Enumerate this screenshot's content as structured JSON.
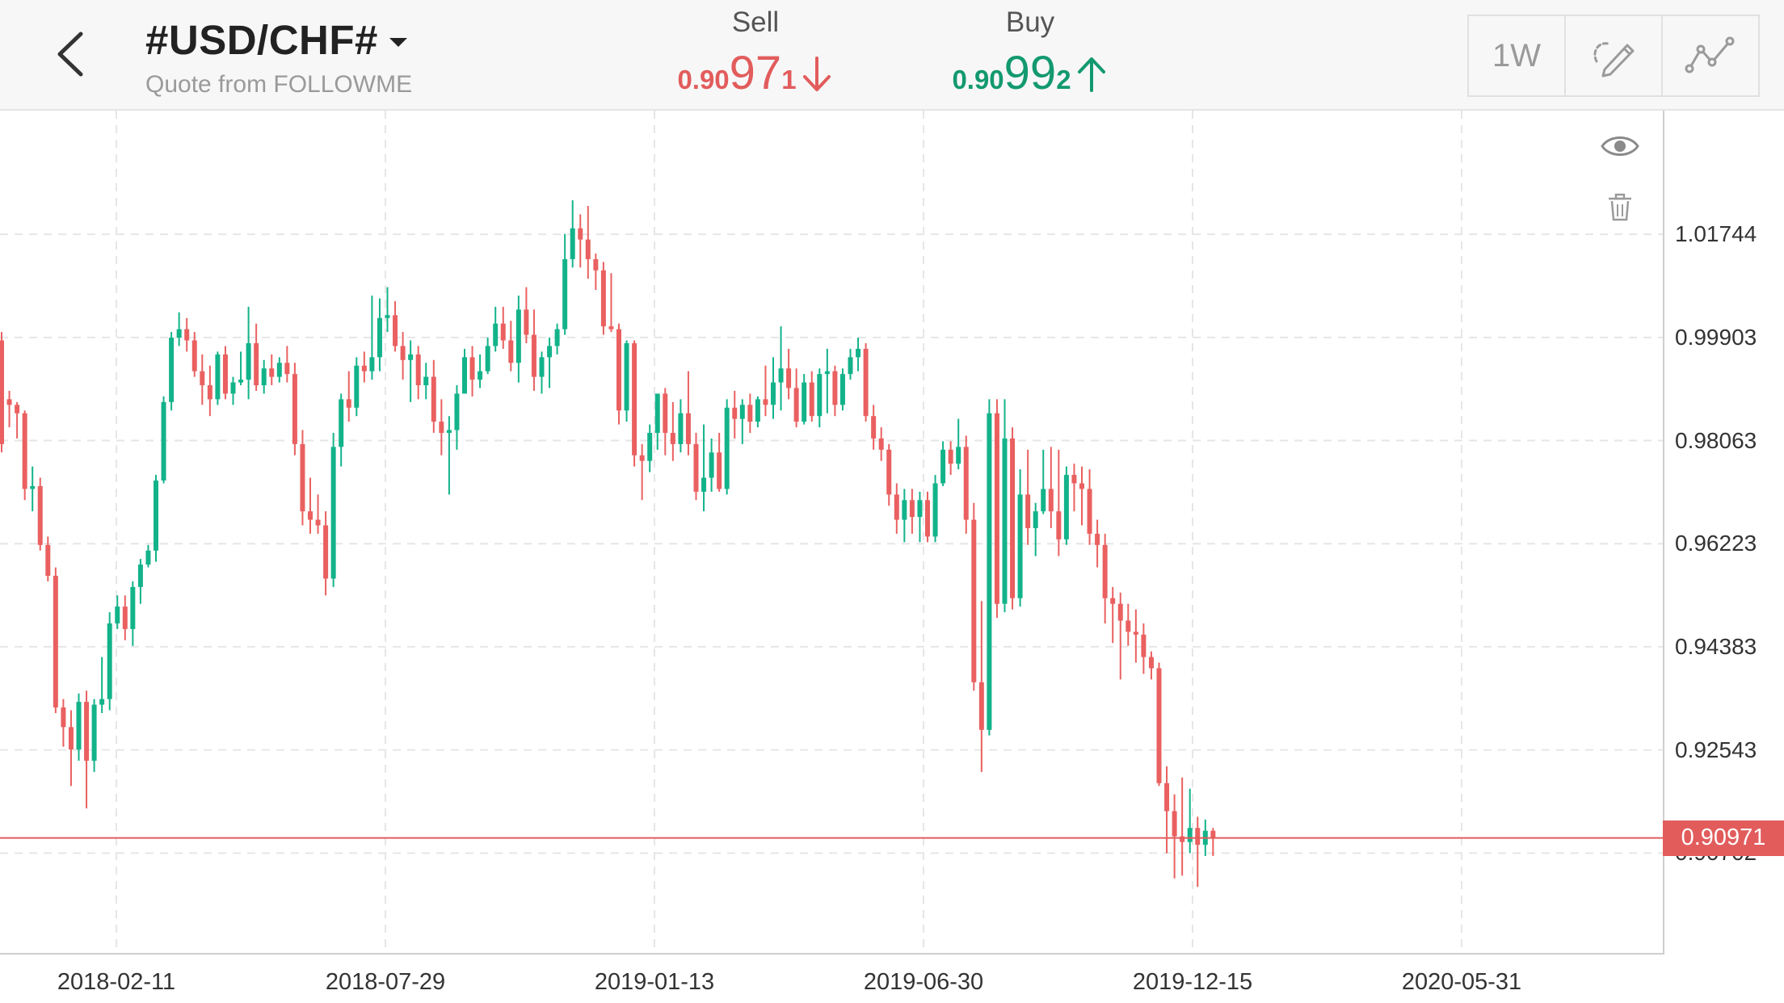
{
  "header": {
    "symbol": "#USD/CHF#",
    "subtitle": "Quote from FOLLOWME",
    "sell": {
      "label": "Sell",
      "price_small": "0.90",
      "price_big": "97",
      "price_sup": "1",
      "direction": "down",
      "color": "#e25c5c"
    },
    "buy": {
      "label": "Buy",
      "price_small": "0.90",
      "price_big": "99",
      "price_sup": "2",
      "direction": "up",
      "color": "#13996f"
    },
    "timeframe": "1W",
    "icons": {
      "back": "back-chevron-icon",
      "dropdown": "caret-down-icon",
      "draw": "pen-draw-icon",
      "indicator": "indicator-line-icon",
      "eye": "eye-icon",
      "trash": "trash-icon"
    }
  },
  "chart_data": {
    "type": "candlestick",
    "ylim": [
      0.8892,
      1.0395
    ],
    "y_ticks": [
      "1.01744",
      "0.99903",
      "0.98063",
      "0.96223",
      "0.94383",
      "0.92543",
      "0.90702"
    ],
    "x_ticks": [
      "2018-02-11",
      "2018-07-29",
      "2019-01-13",
      "2019-06-30",
      "2019-12-15",
      "2020-05-31"
    ],
    "current_price": "0.90971",
    "up_color": "#13b38a",
    "down_color": "#ea6060",
    "candles": [
      [
        0.9985,
        1.0,
        0.9785,
        0.98
      ],
      [
        0.988,
        0.9895,
        0.983,
        0.987
      ],
      [
        0.987,
        0.9875,
        0.981,
        0.9855
      ],
      [
        0.9855,
        0.986,
        0.97,
        0.972
      ],
      [
        0.972,
        0.976,
        0.968,
        0.9725
      ],
      [
        0.9725,
        0.974,
        0.961,
        0.962
      ],
      [
        0.962,
        0.9635,
        0.9555,
        0.9565
      ],
      [
        0.9565,
        0.958,
        0.932,
        0.933
      ],
      [
        0.933,
        0.9345,
        0.926,
        0.9295
      ],
      [
        0.9295,
        0.9325,
        0.919,
        0.9255
      ],
      [
        0.9255,
        0.9355,
        0.9235,
        0.934
      ],
      [
        0.934,
        0.936,
        0.915,
        0.9235
      ],
      [
        0.9235,
        0.9345,
        0.9215,
        0.9335
      ],
      [
        0.9335,
        0.942,
        0.932,
        0.9345
      ],
      [
        0.9345,
        0.95,
        0.9325,
        0.948
      ],
      [
        0.948,
        0.953,
        0.947,
        0.951
      ],
      [
        0.951,
        0.953,
        0.945,
        0.947
      ],
      [
        0.947,
        0.9555,
        0.944,
        0.9545
      ],
      [
        0.9545,
        0.9595,
        0.9515,
        0.9585
      ],
      [
        0.9585,
        0.962,
        0.958,
        0.961
      ],
      [
        0.961,
        0.9745,
        0.959,
        0.9735
      ],
      [
        0.9735,
        0.9885,
        0.973,
        0.9875
      ],
      [
        0.9875,
        1.0,
        0.986,
        0.999
      ],
      [
        0.999,
        1.0035,
        0.9975,
        1.0005
      ],
      [
        1.0005,
        1.0025,
        0.9965,
        0.9985
      ],
      [
        0.9985,
        1.0,
        0.992,
        0.993
      ],
      [
        0.993,
        0.996,
        0.987,
        0.9905
      ],
      [
        0.9905,
        0.994,
        0.985,
        0.988
      ],
      [
        0.988,
        0.9965,
        0.987,
        0.996
      ],
      [
        0.996,
        0.9975,
        0.988,
        0.989
      ],
      [
        0.989,
        0.992,
        0.987,
        0.991
      ],
      [
        0.991,
        0.9965,
        0.9905,
        0.9915
      ],
      [
        0.9915,
        1.0045,
        0.988,
        0.998
      ],
      [
        0.998,
        1.0015,
        0.9895,
        0.9905
      ],
      [
        0.9905,
        0.995,
        0.989,
        0.9935
      ],
      [
        0.9935,
        0.996,
        0.9905,
        0.992
      ],
      [
        0.992,
        0.9955,
        0.991,
        0.9945
      ],
      [
        0.9945,
        0.9975,
        0.991,
        0.9925
      ],
      [
        0.9925,
        0.9945,
        0.978,
        0.98
      ],
      [
        0.98,
        0.9825,
        0.9655,
        0.968
      ],
      [
        0.968,
        0.974,
        0.964,
        0.9665
      ],
      [
        0.9665,
        0.971,
        0.964,
        0.9655
      ],
      [
        0.9655,
        0.968,
        0.953,
        0.956
      ],
      [
        0.956,
        0.982,
        0.9545,
        0.9795
      ],
      [
        0.9795,
        0.989,
        0.976,
        0.988
      ],
      [
        0.988,
        0.993,
        0.984,
        0.9865
      ],
      [
        0.9865,
        0.9955,
        0.985,
        0.994
      ],
      [
        0.994,
        0.9965,
        0.991,
        0.993
      ],
      [
        0.993,
        1.0065,
        0.9915,
        0.9955
      ],
      [
        0.9955,
        1.006,
        0.993,
        1.0025
      ],
      [
        1.0025,
        1.008,
        1.0,
        1.003
      ],
      [
        1.003,
        1.0055,
        0.9965,
        0.9975
      ],
      [
        0.9975,
        1.0,
        0.9915,
        0.995
      ],
      [
        0.995,
        0.9985,
        0.9875,
        0.996
      ],
      [
        0.996,
        0.9975,
        0.988,
        0.9905
      ],
      [
        0.9905,
        0.9945,
        0.988,
        0.992
      ],
      [
        0.992,
        0.995,
        0.982,
        0.984
      ],
      [
        0.984,
        0.988,
        0.978,
        0.982
      ],
      [
        0.982,
        0.985,
        0.971,
        0.9825
      ],
      [
        0.9825,
        0.9905,
        0.979,
        0.989
      ],
      [
        0.989,
        0.997,
        0.989,
        0.9955
      ],
      [
        0.9955,
        0.9975,
        0.9885,
        0.9915
      ],
      [
        0.9915,
        0.996,
        0.99,
        0.993
      ],
      [
        0.993,
        0.999,
        0.9925,
        0.9975
      ],
      [
        0.9975,
        1.0045,
        0.9965,
        1.0015
      ],
      [
        1.0015,
        1.0045,
        0.997,
        0.9985
      ],
      [
        0.9985,
        1.002,
        0.993,
        0.9945
      ],
      [
        0.9945,
        1.0065,
        0.991,
        1.004
      ],
      [
        1.004,
        1.008,
        0.998,
        0.9995
      ],
      [
        0.9995,
        1.004,
        0.9895,
        0.992
      ],
      [
        0.992,
        0.9965,
        0.989,
        0.9955
      ],
      [
        0.9955,
        0.999,
        0.99,
        0.9975
      ],
      [
        0.9975,
        1.0015,
        0.996,
        1.0005
      ],
      [
        1.0005,
        1.0175,
        0.9995,
        1.013
      ],
      [
        1.013,
        1.0235,
        1.0115,
        1.0185
      ],
      [
        1.0185,
        1.021,
        1.0115,
        1.0165
      ],
      [
        1.0165,
        1.0225,
        1.0095,
        1.013
      ],
      [
        1.013,
        1.014,
        1.0075,
        1.011
      ],
      [
        1.011,
        1.0125,
        0.9995,
        1.001
      ],
      [
        1.001,
        1.0105,
        1.0,
        1.0005
      ],
      [
        1.0005,
        1.0015,
        0.9835,
        0.986
      ],
      [
        0.986,
        0.9985,
        0.984,
        0.998
      ],
      [
        0.998,
        0.9985,
        0.976,
        0.978
      ],
      [
        0.978,
        0.98,
        0.97,
        0.977
      ],
      [
        0.977,
        0.9835,
        0.975,
        0.982
      ],
      [
        0.982,
        0.9885,
        0.979,
        0.989
      ],
      [
        0.989,
        0.99,
        0.978,
        0.982
      ],
      [
        0.982,
        0.9875,
        0.977,
        0.98
      ],
      [
        0.98,
        0.988,
        0.9785,
        0.9855
      ],
      [
        0.9855,
        0.993,
        0.978,
        0.98
      ],
      [
        0.98,
        0.982,
        0.97,
        0.9715
      ],
      [
        0.9715,
        0.9835,
        0.968,
        0.974
      ],
      [
        0.974,
        0.981,
        0.9715,
        0.9785
      ],
      [
        0.9785,
        0.982,
        0.9715,
        0.972
      ],
      [
        0.972,
        0.988,
        0.971,
        0.9865
      ],
      [
        0.9865,
        0.9895,
        0.981,
        0.9845
      ],
      [
        0.9845,
        0.988,
        0.98,
        0.987
      ],
      [
        0.987,
        0.989,
        0.982,
        0.984
      ],
      [
        0.984,
        0.9885,
        0.983,
        0.988
      ],
      [
        0.988,
        0.994,
        0.985,
        0.987
      ],
      [
        0.987,
        0.9955,
        0.9845,
        0.991
      ],
      [
        0.991,
        1.001,
        0.986,
        0.9935
      ],
      [
        0.9935,
        0.997,
        0.988,
        0.99
      ],
      [
        0.99,
        0.9935,
        0.983,
        0.984
      ],
      [
        0.984,
        0.9925,
        0.9835,
        0.991
      ],
      [
        0.991,
        0.993,
        0.984,
        0.985
      ],
      [
        0.985,
        0.9935,
        0.983,
        0.9925
      ],
      [
        0.9925,
        0.997,
        0.9855,
        0.993
      ],
      [
        0.993,
        0.994,
        0.985,
        0.987
      ],
      [
        0.987,
        0.9935,
        0.986,
        0.9925
      ],
      [
        0.9925,
        0.997,
        0.9915,
        0.9955
      ],
      [
        0.9955,
        0.999,
        0.993,
        0.997
      ],
      [
        0.997,
        0.998,
        0.984,
        0.985
      ],
      [
        0.985,
        0.987,
        0.979,
        0.981
      ],
      [
        0.981,
        0.983,
        0.977,
        0.979
      ],
      [
        0.979,
        0.98,
        0.969,
        0.971
      ],
      [
        0.971,
        0.973,
        0.964,
        0.9665
      ],
      [
        0.9665,
        0.972,
        0.9625,
        0.97
      ],
      [
        0.97,
        0.972,
        0.964,
        0.967
      ],
      [
        0.967,
        0.9715,
        0.9625,
        0.97
      ],
      [
        0.97,
        0.9715,
        0.9625,
        0.9635
      ],
      [
        0.9635,
        0.9745,
        0.9625,
        0.973
      ],
      [
        0.973,
        0.9805,
        0.9725,
        0.979
      ],
      [
        0.979,
        0.9805,
        0.9745,
        0.9765
      ],
      [
        0.9765,
        0.9845,
        0.9755,
        0.9795
      ],
      [
        0.9795,
        0.9815,
        0.964,
        0.9665
      ],
      [
        0.9665,
        0.9695,
        0.936,
        0.9375
      ],
      [
        0.9375,
        0.952,
        0.9215,
        0.929
      ],
      [
        0.929,
        0.988,
        0.928,
        0.9855
      ],
      [
        0.9855,
        0.988,
        0.949,
        0.9515
      ],
      [
        0.9515,
        0.988,
        0.95,
        0.981
      ],
      [
        0.981,
        0.983,
        0.9505,
        0.9525
      ],
      [
        0.9525,
        0.9755,
        0.951,
        0.971
      ],
      [
        0.971,
        0.979,
        0.962,
        0.965
      ],
      [
        0.965,
        0.9695,
        0.96,
        0.968
      ],
      [
        0.968,
        0.979,
        0.9675,
        0.972
      ],
      [
        0.972,
        0.9795,
        0.965,
        0.968
      ],
      [
        0.968,
        0.979,
        0.96,
        0.963
      ],
      [
        0.963,
        0.976,
        0.962,
        0.9745
      ],
      [
        0.9745,
        0.9765,
        0.968,
        0.973
      ],
      [
        0.973,
        0.976,
        0.9655,
        0.972
      ],
      [
        0.972,
        0.9755,
        0.962,
        0.964
      ],
      [
        0.964,
        0.9665,
        0.958,
        0.962
      ],
      [
        0.962,
        0.964,
        0.948,
        0.9525
      ],
      [
        0.9525,
        0.9545,
        0.9445,
        0.9515
      ],
      [
        0.9515,
        0.9535,
        0.938,
        0.9485
      ],
      [
        0.9485,
        0.9515,
        0.944,
        0.9465
      ],
      [
        0.9465,
        0.9505,
        0.941,
        0.946
      ],
      [
        0.946,
        0.948,
        0.939,
        0.942
      ],
      [
        0.942,
        0.943,
        0.938,
        0.94
      ],
      [
        0.94,
        0.941,
        0.919,
        0.9195
      ],
      [
        0.9195,
        0.9225,
        0.907,
        0.9145
      ],
      [
        0.9145,
        0.9175,
        0.9025,
        0.91
      ],
      [
        0.91,
        0.9205,
        0.903,
        0.909
      ],
      [
        0.909,
        0.9185,
        0.907,
        0.9115
      ],
      [
        0.9115,
        0.9135,
        0.901,
        0.9085
      ],
      [
        0.9085,
        0.913,
        0.9065,
        0.911
      ],
      [
        0.911,
        0.9115,
        0.9065,
        0.9097
      ]
    ]
  }
}
